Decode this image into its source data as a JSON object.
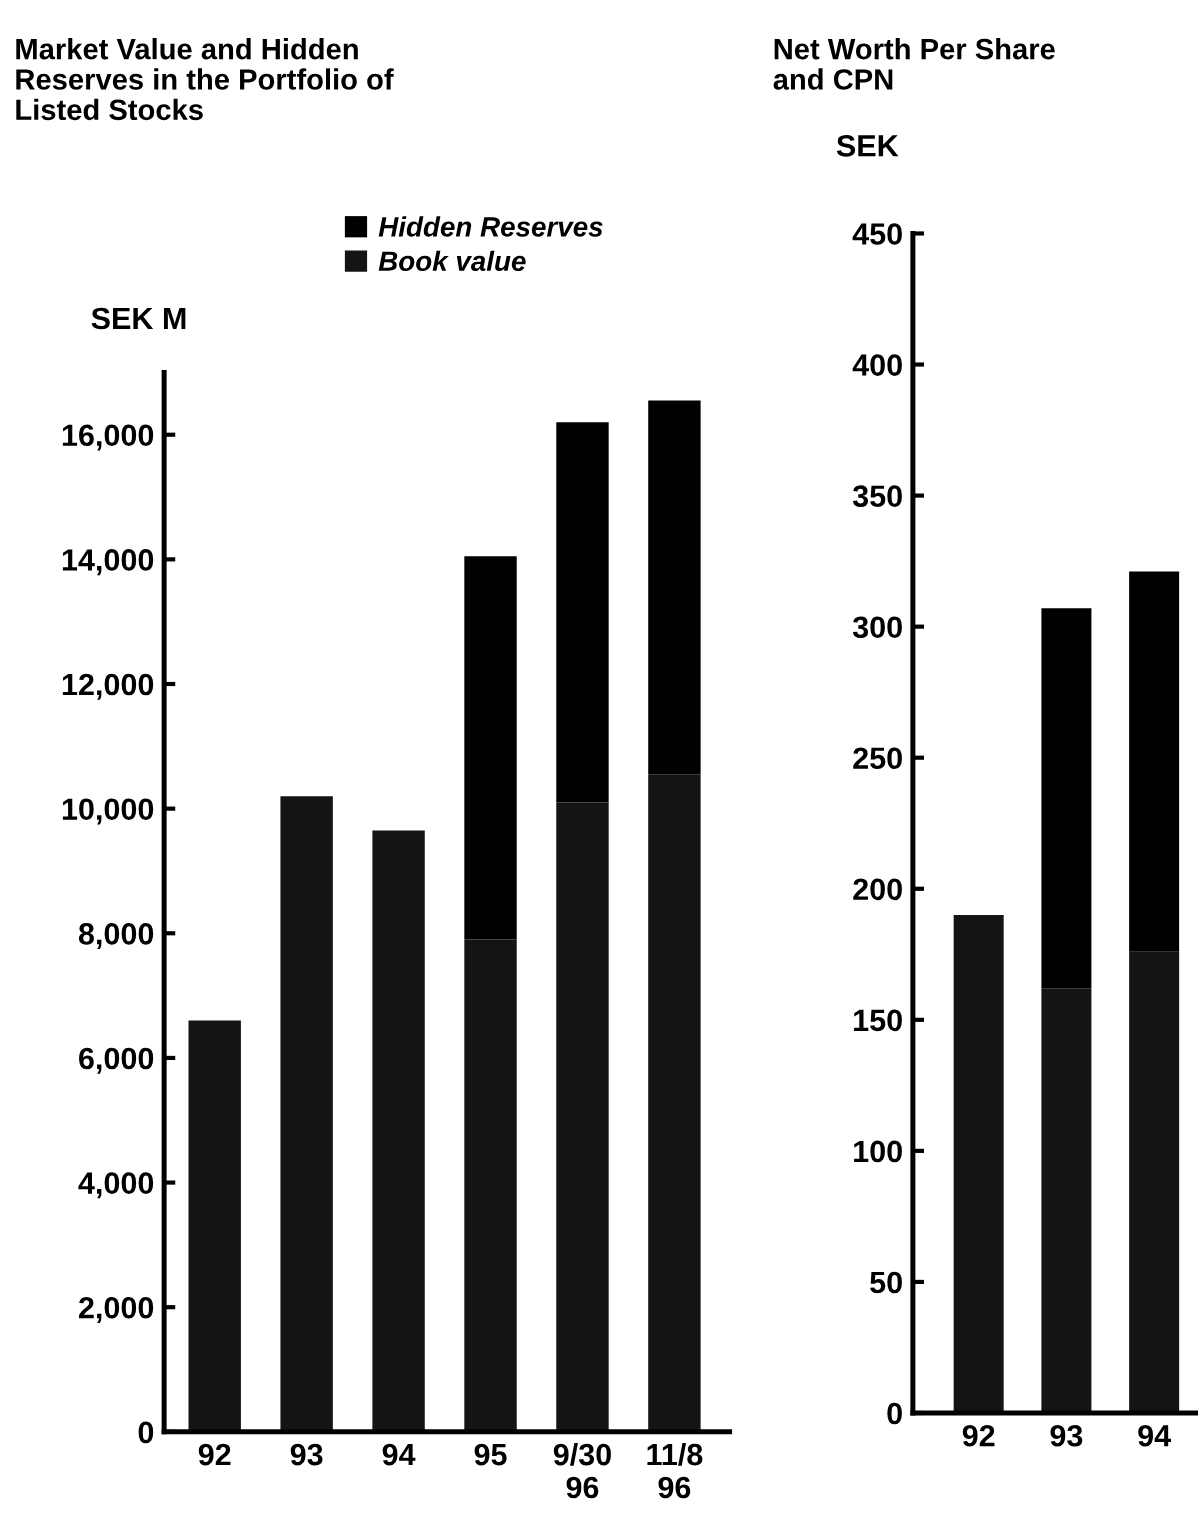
{
  "chart_data": [
    {
      "type": "bar",
      "title": "Market Value and Hidden\nReserves in the Portfolio of\nListed Stocks",
      "ylabel": "SEK M",
      "categories": [
        "92",
        "93",
        "94",
        "95",
        "9/30\n96",
        "11/8\n96"
      ],
      "stacked": true,
      "legend": "top",
      "ylim": [
        0,
        17000
      ],
      "yticks": [
        {
          "value": 0,
          "label": "0"
        },
        {
          "value": 2000,
          "label": "2,000"
        },
        {
          "value": 4000,
          "label": "4,000"
        },
        {
          "value": 6000,
          "label": "6,000"
        },
        {
          "value": 8000,
          "label": "8,000"
        },
        {
          "value": 10000,
          "label": "10,000"
        },
        {
          "value": 12000,
          "label": "12,000"
        },
        {
          "value": 14000,
          "label": "14,000"
        },
        {
          "value": 16000,
          "label": "16,000"
        }
      ],
      "series": [
        {
          "name": "Book value",
          "color": "#141414",
          "values": [
            6600,
            10200,
            9650,
            7900,
            10100,
            10550
          ]
        },
        {
          "name": "Hidden Reserves",
          "color": "#000000",
          "values": [
            null,
            null,
            null,
            6150,
            6100,
            6000
          ]
        }
      ]
    },
    {
      "type": "bar",
      "title": "Net Worth Per Share\nand CPN",
      "ylabel": "SEK",
      "categories": [
        "92",
        "93",
        "94"
      ],
      "stacked": true,
      "ylim": [
        0,
        450
      ],
      "yticks": [
        0,
        50,
        100,
        150,
        200,
        250,
        300,
        350,
        400,
        450
      ],
      "series": [
        {
          "color": "#141414",
          "values": [
            190,
            162,
            176
          ]
        },
        {
          "color": "#000000",
          "values": [
            null,
            145,
            145
          ]
        }
      ]
    }
  ]
}
